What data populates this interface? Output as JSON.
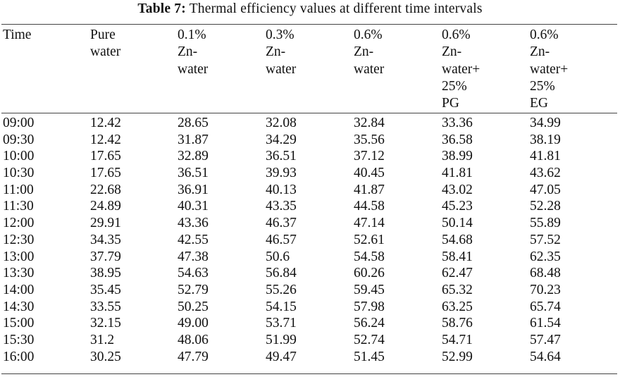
{
  "table": {
    "caption_label": "Table 7:",
    "caption_text": "Thermal efficiency values at different time intervals",
    "columns": [
      [
        "Time"
      ],
      [
        "Pure",
        "water"
      ],
      [
        "0.1%",
        "Zn-",
        "water"
      ],
      [
        "0.3%",
        "Zn-",
        "water"
      ],
      [
        "0.6%",
        "Zn-",
        "water"
      ],
      [
        "0.6%",
        "Zn-",
        "water+",
        "25%",
        "PG"
      ],
      [
        "0.6%",
        "Zn-",
        "water+",
        "25%",
        "EG"
      ]
    ],
    "rows": [
      [
        "09:00",
        "12.42",
        "28.65",
        "32.08",
        "32.84",
        "33.36",
        "34.99"
      ],
      [
        "09:30",
        "12.42",
        "31.87",
        "34.29",
        "35.56",
        "36.58",
        "38.19"
      ],
      [
        "10:00",
        "17.65",
        "32.89",
        "36.51",
        "37.12",
        "38.99",
        "41.81"
      ],
      [
        "10:30",
        "17.65",
        "36.51",
        "39.93",
        "40.45",
        "41.81",
        "43.62"
      ],
      [
        "11:00",
        "22.68",
        "36.91",
        "40.13",
        "41.87",
        "43.02",
        "47.05"
      ],
      [
        "11:30",
        "24.89",
        "40.31",
        "43.35",
        "44.58",
        "45.23",
        "52.28"
      ],
      [
        "12:00",
        "29.91",
        "43.36",
        "46.37",
        "47.14",
        "50.14",
        "55.89"
      ],
      [
        "12:30",
        "34.35",
        "42.55",
        "46.57",
        "52.61",
        "54.68",
        "57.52"
      ],
      [
        "13:00",
        "37.79",
        "47.38",
        "50.6",
        "54.58",
        "58.41",
        "62.35"
      ],
      [
        "13:30",
        "38.95",
        "54.63",
        "56.84",
        "60.26",
        "62.47",
        "68.48"
      ],
      [
        "14:00",
        "35.45",
        "52.79",
        "55.26",
        "59.45",
        "65.32",
        "70.23"
      ],
      [
        "14:30",
        "33.55",
        "50.25",
        "54.15",
        "57.98",
        "63.25",
        "65.74"
      ],
      [
        "15:00",
        "32.15",
        "49.00",
        "53.71",
        "56.24",
        "58.76",
        "61.54"
      ],
      [
        "15:30",
        "31.2",
        "48.06",
        "51.99",
        "52.74",
        "54.71",
        "57.47"
      ],
      [
        "16:00",
        "30.25",
        "47.79",
        "49.47",
        "51.45",
        "52.99",
        "54.64"
      ]
    ]
  }
}
